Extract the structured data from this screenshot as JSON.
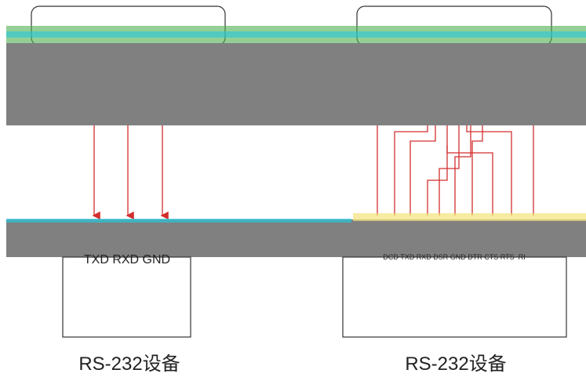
{
  "left_device": {
    "pins": "TXD RXD GND",
    "label": "RS-232设备"
  },
  "right_device": {
    "pins": "DCD TXD RXD DSR GND DTR CTS RTS  RI",
    "label": "RS-232设备"
  }
}
